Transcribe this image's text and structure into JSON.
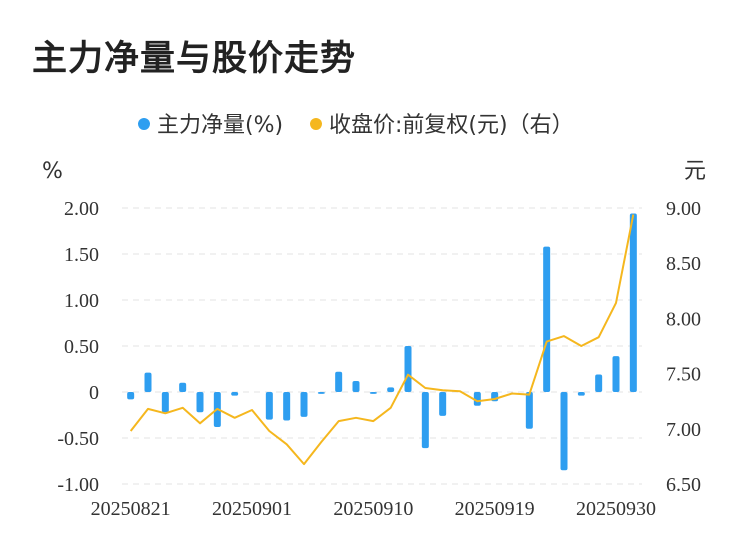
{
  "title": "主力净量与股价走势",
  "chart_data": {
    "type": "bar+line",
    "legend": [
      {
        "label": "主力净量(%)",
        "color": "#2e9ef0"
      },
      {
        "label": "收盘价:前复权(元)（右）",
        "color": "#f5b71e"
      }
    ],
    "left_unit": "%",
    "right_unit": "元",
    "left_ylim": [
      -1.0,
      2.0
    ],
    "right_ylim": [
      6.5,
      9.0
    ],
    "left_ticks": [
      "2.00",
      "1.50",
      "1.00",
      "0.50",
      "0",
      "-0.50",
      "-1.00"
    ],
    "right_ticks": [
      "9.00",
      "8.50",
      "8.00",
      "7.50",
      "7.00",
      "6.50"
    ],
    "x_tick_labels": [
      "20250821",
      "20250901",
      "20250910",
      "20250919",
      "20250930"
    ],
    "x_tick_indices": [
      0,
      7,
      14,
      21,
      28
    ],
    "series": [
      {
        "name": "主力净量(%)",
        "type": "bar",
        "values": [
          -0.08,
          0.21,
          -0.22,
          0.1,
          -0.22,
          -0.38,
          -0.04,
          0.0,
          -0.3,
          -0.31,
          -0.27,
          -0.02,
          0.22,
          0.12,
          -0.02,
          0.05,
          0.5,
          -0.61,
          -0.26,
          0.0,
          -0.15,
          -0.1,
          0.0,
          -0.4,
          1.58,
          -0.85,
          -0.04,
          0.19,
          0.39,
          1.94
        ]
      },
      {
        "name": "收盘价:前复权(元)（右）",
        "type": "line",
        "values": [
          6.98,
          7.18,
          7.14,
          7.19,
          7.05,
          7.18,
          7.1,
          7.17,
          6.98,
          6.86,
          6.68,
          6.88,
          7.07,
          7.1,
          7.07,
          7.19,
          7.49,
          7.37,
          7.35,
          7.34,
          7.25,
          7.27,
          7.32,
          7.31,
          7.79,
          7.84,
          7.75,
          7.83,
          8.14,
          8.94
        ]
      }
    ]
  }
}
